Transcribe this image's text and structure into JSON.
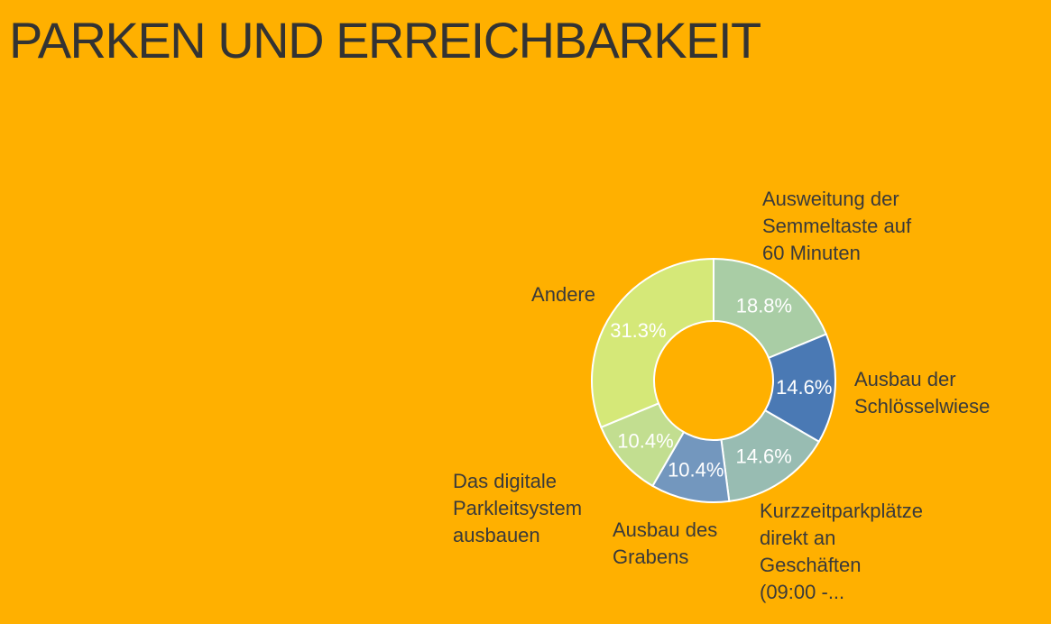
{
  "page": {
    "title": "PARKEN UND ERREICHBARKEIT"
  },
  "chart_data": {
    "type": "pie",
    "donut": true,
    "title": "",
    "legend": "none",
    "slices": [
      {
        "label": [
          "Ausweitung der",
          "Semmeltaste auf",
          "60 Minuten"
        ],
        "value": 18.8,
        "display": "18.8%",
        "color": "#A9CDA5"
      },
      {
        "label": [
          "Ausbau der",
          "Schlösselwiese"
        ],
        "value": 14.6,
        "display": "14.6%",
        "color": "#4A79B4"
      },
      {
        "label": [
          "Kurzzeitparkplätze",
          "direkt an",
          "Geschäften",
          "(09:00 -..."
        ],
        "value": 14.6,
        "display": "14.6%",
        "color": "#98BCB2"
      },
      {
        "label": [
          "Ausbau des",
          "Grabens"
        ],
        "value": 10.4,
        "display": "10.4%",
        "color": "#7397BE"
      },
      {
        "label": [
          "Das digitale",
          "Parkleitsystem",
          "ausbauen"
        ],
        "value": 10.4,
        "display": "10.4%",
        "color": "#C2DE90"
      },
      {
        "label": [
          "Andere"
        ],
        "value": 31.3,
        "display": "31.3%",
        "color": "#D5E878"
      }
    ]
  }
}
